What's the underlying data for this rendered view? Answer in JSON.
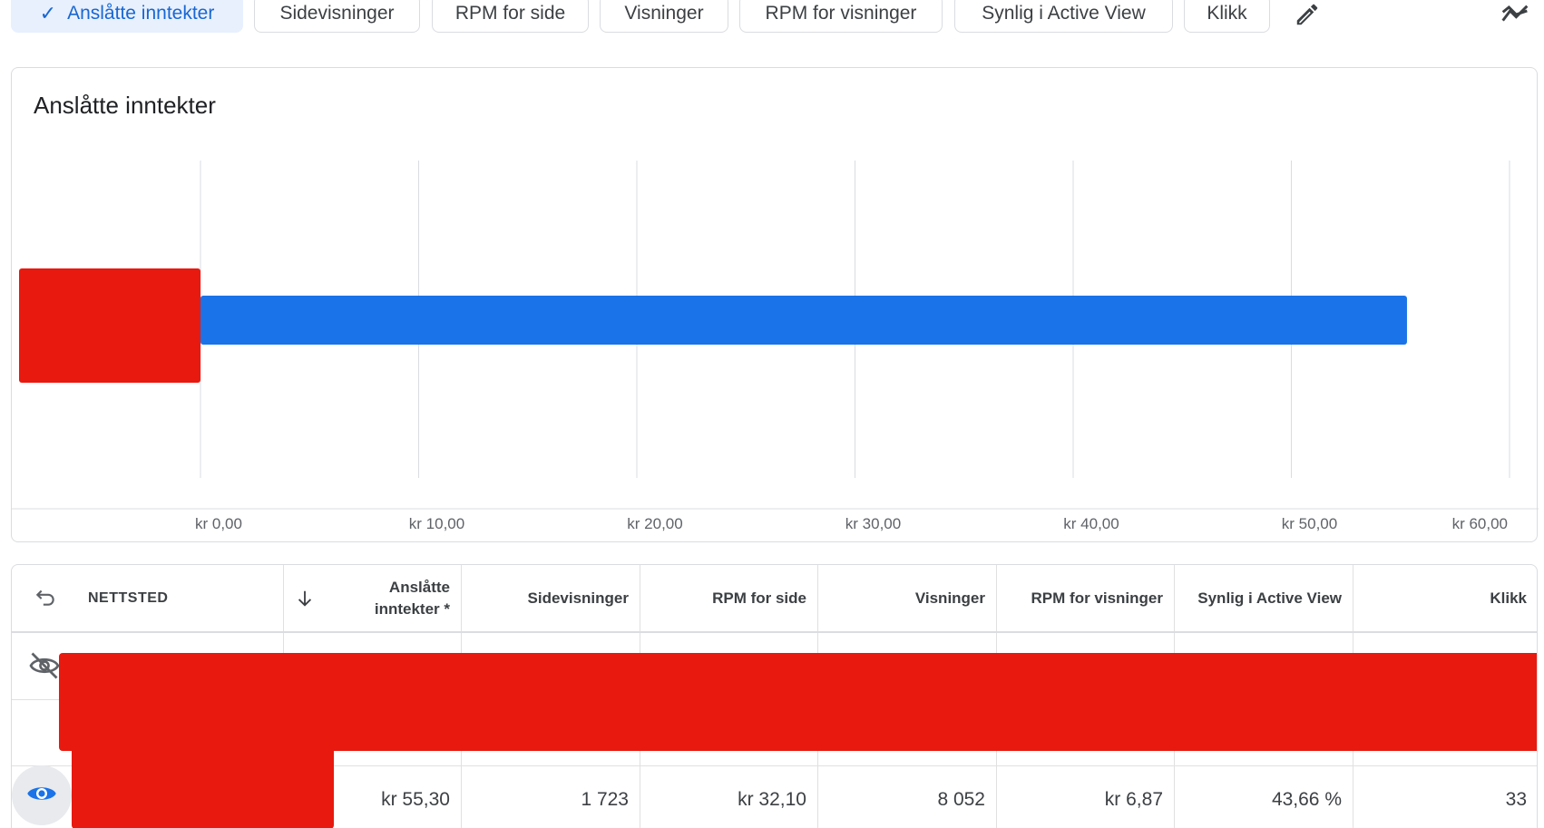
{
  "chips": {
    "selected": "Anslåtte inntekter",
    "items": [
      "Sidevisninger",
      "RPM for side",
      "Visninger",
      "RPM for visninger",
      "Synlig i Active View",
      "Klikk"
    ]
  },
  "toolbar": {
    "edit_icon": "pencil-icon",
    "chart_toggle_icon": "trend-icon"
  },
  "chart_card": {
    "title": "Anslåtte inntekter"
  },
  "chart_data": {
    "type": "bar",
    "orientation": "horizontal",
    "categories": [
      ""
    ],
    "values": [
      55.3
    ],
    "xlim": [
      0,
      60
    ],
    "xticks": [
      "kr 0,00",
      "kr 10,00",
      "kr 20,00",
      "kr 30,00",
      "kr 40,00",
      "kr 50,00",
      "kr 60,00"
    ],
    "grid": true,
    "bar_color": "#1a73e8"
  },
  "table": {
    "headers": {
      "site": "NETTSTED",
      "revenue": "Anslåtte inntekter *",
      "pageviews": "Sidevisninger",
      "page_rpm": "RPM for side",
      "impressions": "Visninger",
      "impression_rpm": "RPM for visninger",
      "active_view": "Synlig i Active View",
      "clicks": "Klikk"
    },
    "row": {
      "revenue": "kr 55,30",
      "pageviews": "1 723",
      "page_rpm": "kr 32,10",
      "impressions": "8 052",
      "impression_rpm": "kr 6,87",
      "active_view": "43,66 %",
      "clicks": "33"
    }
  },
  "colors": {
    "accent": "#1a73e8",
    "redaction": "#e8190f",
    "selected_chip_bg": "#e8f0fe"
  }
}
